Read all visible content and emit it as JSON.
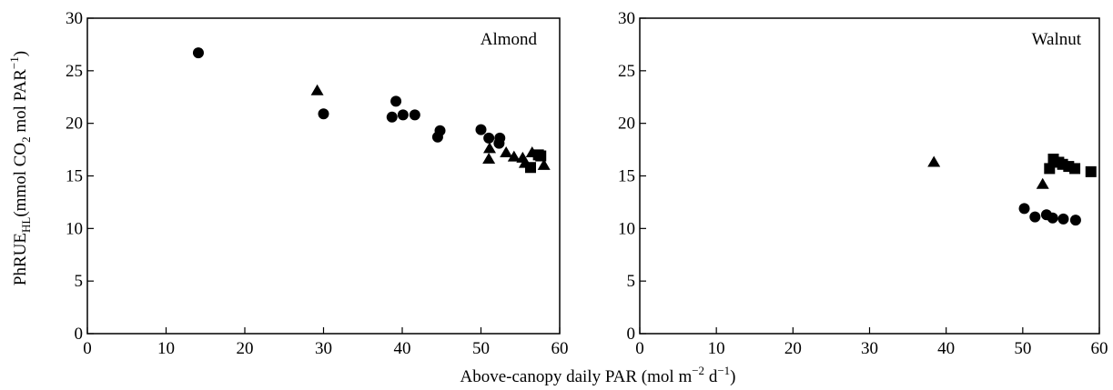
{
  "chart_data": {
    "ylabel": {
      "main": "PhRUE",
      "sub": "HL",
      "unit_open": "(mmol CO",
      "unit_sub": "2",
      "unit_mid": " mol PAR",
      "unit_sup": "−1",
      "unit_close": ")"
    },
    "xlabel": {
      "part1": "Above-canopy daily PAR (mol m",
      "sup1": "−2",
      "part2": " d",
      "sup2": "−1",
      "part3": ")"
    },
    "panels": [
      {
        "type": "scatter",
        "label": "Almond",
        "xlim": [
          0,
          60
        ],
        "ylim": [
          0,
          30
        ],
        "x_ticks": [
          0,
          10,
          20,
          30,
          40,
          50,
          60
        ],
        "y_ticks": [
          0,
          5,
          10,
          15,
          20,
          25,
          30
        ],
        "series": [
          {
            "marker": "circle",
            "points": [
              [
                14.1,
                26.7
              ],
              [
                30.0,
                20.9
              ],
              [
                38.7,
                20.6
              ],
              [
                39.2,
                22.1
              ],
              [
                40.1,
                20.8
              ],
              [
                41.6,
                20.8
              ],
              [
                44.5,
                18.7
              ],
              [
                44.8,
                19.3
              ],
              [
                50.0,
                19.4
              ],
              [
                51.0,
                18.6
              ],
              [
                52.3,
                18.1
              ],
              [
                52.4,
                18.6
              ]
            ]
          },
          {
            "marker": "triangle",
            "points": [
              [
                29.2,
                23.1
              ],
              [
                51.0,
                16.6
              ],
              [
                51.1,
                17.6
              ],
              [
                53.2,
                17.2
              ],
              [
                54.2,
                16.8
              ],
              [
                55.3,
                16.7
              ],
              [
                55.6,
                16.2
              ],
              [
                56.5,
                17.2
              ],
              [
                58.0,
                16.0
              ]
            ]
          },
          {
            "marker": "square",
            "points": [
              [
                56.3,
                15.8
              ],
              [
                57.3,
                17.0
              ],
              [
                57.6,
                16.9
              ]
            ]
          }
        ]
      },
      {
        "type": "scatter",
        "label": "Walnut",
        "xlim": [
          0,
          60
        ],
        "ylim": [
          0,
          30
        ],
        "x_ticks": [
          0,
          10,
          20,
          30,
          40,
          50,
          60
        ],
        "y_ticks": [
          0,
          5,
          10,
          15,
          20,
          25,
          30
        ],
        "series": [
          {
            "marker": "circle",
            "points": [
              [
                50.2,
                11.9
              ],
              [
                51.6,
                11.1
              ],
              [
                53.1,
                11.3
              ],
              [
                53.9,
                11.0
              ],
              [
                55.3,
                10.9
              ],
              [
                56.9,
                10.8
              ]
            ]
          },
          {
            "marker": "triangle",
            "points": [
              [
                38.4,
                16.3
              ],
              [
                52.6,
                14.2
              ]
            ]
          },
          {
            "marker": "square",
            "points": [
              [
                53.5,
                15.7
              ],
              [
                54.0,
                16.6
              ],
              [
                54.7,
                16.3
              ],
              [
                55.2,
                16.1
              ],
              [
                56.0,
                15.9
              ],
              [
                56.8,
                15.7
              ],
              [
                58.9,
                15.4
              ]
            ]
          }
        ]
      }
    ]
  }
}
